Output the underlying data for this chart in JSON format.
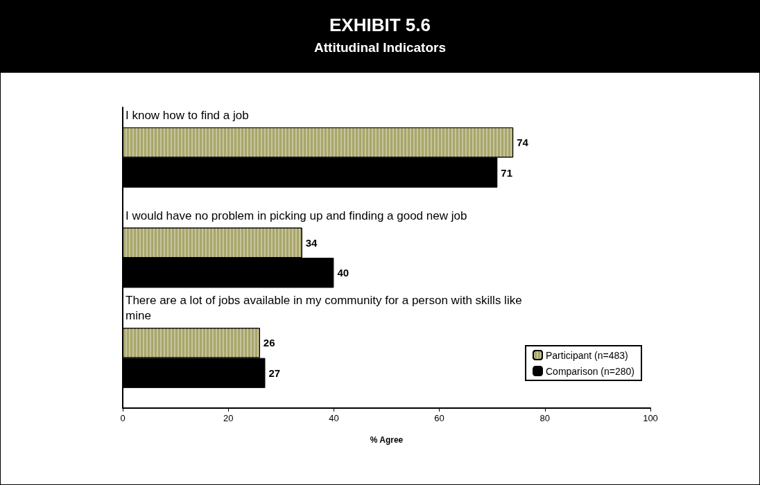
{
  "chart_data": {
    "type": "bar",
    "orientation": "horizontal",
    "title": "EXHIBIT 5.6",
    "subtitle": "Attitudinal Indicators",
    "xlabel": "% Agree",
    "categories": [
      "I know how to find a job",
      "I would have no problem in picking up and finding a good new job",
      "There are a lot of jobs available in my community for a person with skills like mine"
    ],
    "series": [
      {
        "name": "Participant (n=483)",
        "color": "#a8a66a",
        "values": [
          74,
          34,
          26
        ]
      },
      {
        "name": "Comparison (n=280)",
        "color": "#000000",
        "values": [
          71,
          40,
          27
        ]
      }
    ],
    "xlim": [
      0,
      100
    ],
    "xticks": [
      0,
      20,
      40,
      60,
      80,
      100
    ],
    "data_labels": true,
    "legend": "bottom right",
    "grid": false
  }
}
